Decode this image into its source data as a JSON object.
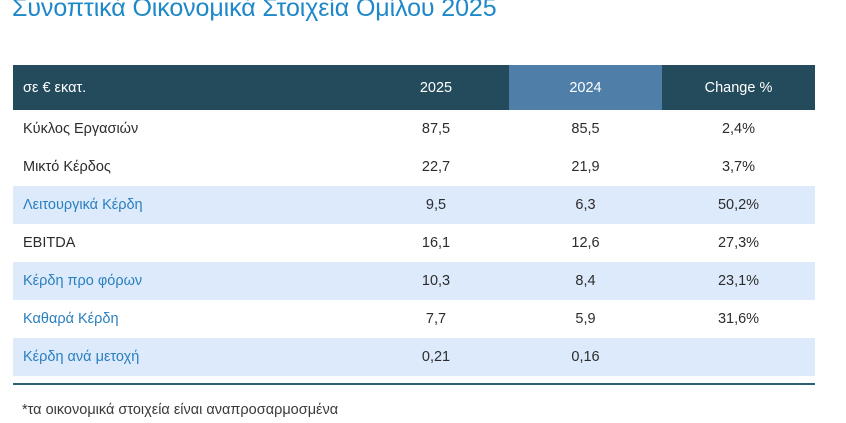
{
  "title": "Συνοπτικά Οικονομικά Στοιχεία Ομίλου 2025",
  "table": {
    "headers": {
      "label": "σε € εκατ.",
      "y2025": "2025",
      "y2024": "2024",
      "change": "Change %"
    },
    "rows": [
      {
        "label": "Κύκλος Εργασιών",
        "y2025": "87,5",
        "y2024": "85,5",
        "change": "2,4%"
      },
      {
        "label": "Μικτό Κέρδος",
        "y2025": "22,7",
        "y2024": "21,9",
        "change": "3,7%"
      },
      {
        "label": "Λειτουργικά Κέρδη",
        "y2025": "9,5",
        "y2024": "6,3",
        "change": "50,2%"
      },
      {
        "label": "EBITDA",
        "y2025": "16,1",
        "y2024": "12,6",
        "change": "27,3%"
      },
      {
        "label": "Κέρδη προ φόρων",
        "y2025": "10,3",
        "y2024": "8,4",
        "change": "23,1%"
      },
      {
        "label": "Καθαρά Κέρδη",
        "y2025": "7,7",
        "y2024": "5,9",
        "change": "31,6%"
      },
      {
        "label": "Κέρδη ανά μετοχή",
        "y2025": "0,21",
        "y2024": "0,16",
        "change": ""
      }
    ]
  },
  "footnote": "*τα οικονομικά στοιχεία είναι αναπροσαρμοσμένα",
  "colors": {
    "title": "#1e88c8",
    "header_bg": "#234b5c",
    "header_highlight_bg": "#4f7ea9",
    "shaded_row_bg": "#ddeafb",
    "shaded_label": "#2a7fbf"
  }
}
